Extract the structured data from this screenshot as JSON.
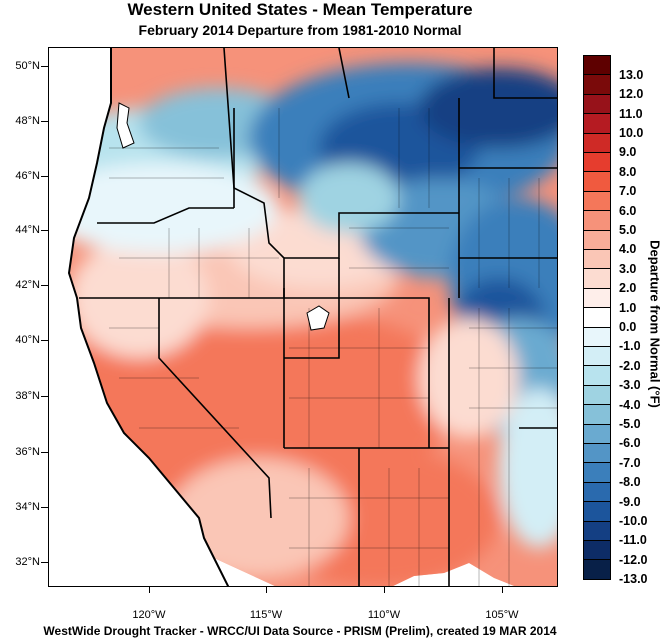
{
  "title": "Western United States - Mean Temperature",
  "subtitle": "February 2014  Departure from 1981-2010 Normal",
  "footer": "WestWide Drought Tracker - WRCC/UI  Data Source - PRISM (Prelim), created 19 MAR 2014",
  "colorbar": {
    "title": "Departure from Normal (°F)",
    "labels": [
      "13.0",
      "12.0",
      "11.0",
      "10.0",
      "9.0",
      "8.0",
      "7.0",
      "6.0",
      "5.0",
      "4.0",
      "3.0",
      "2.0",
      "1.0",
      "0.0",
      "-1.0",
      "-2.0",
      "-3.0",
      "-4.0",
      "-5.0",
      "-6.0",
      "-7.0",
      "-8.0",
      "-9.0",
      "-10.0",
      "-11.0",
      "-12.0",
      "-13.0"
    ],
    "colors": [
      "#5e0000",
      "#7a0a0a",
      "#97121a",
      "#b51b22",
      "#cf2a26",
      "#e63d2e",
      "#f05a3f",
      "#f4775a",
      "#f6927a",
      "#f8ad99",
      "#fac6b6",
      "#fcdcd1",
      "#feeeea",
      "#ffffff",
      "#e8f6fb",
      "#d3eef6",
      "#b8e3ee",
      "#9fd3e2",
      "#86c1d9",
      "#6aaad0",
      "#5395c6",
      "#3b7fbb",
      "#2a6aae",
      "#1c559c",
      "#143f83",
      "#0d2c66",
      "#082048"
    ]
  },
  "latitudes": [
    "50°N",
    "48°N",
    "46°N",
    "44°N",
    "42°N",
    "40°N",
    "38°N",
    "36°N",
    "34°N",
    "32°N"
  ],
  "longitudes": [
    "120°W",
    "115°W",
    "110°W",
    "105°W"
  ],
  "legend_shading": "Warm (red) across the Southwest, Great Basin and California; cold (blue) across Montana, Wyoming, eastern Colorado and the northern Plains."
}
